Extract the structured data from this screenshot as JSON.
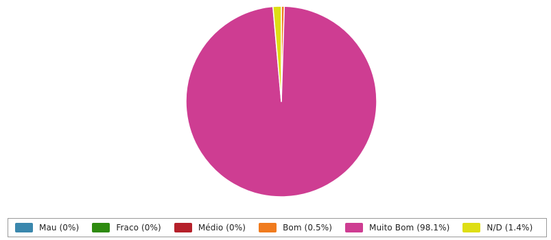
{
  "chart_data": {
    "type": "pie",
    "title": "",
    "slices": [
      {
        "label": "Mau",
        "value": 0,
        "legend": "Mau (0%)",
        "color": "#3a87ad"
      },
      {
        "label": "Fraco",
        "value": 0,
        "legend": "Fraco (0%)",
        "color": "#2e8b0f"
      },
      {
        "label": "Médio",
        "value": 0,
        "legend": "Médio (0%)",
        "color": "#b5202a"
      },
      {
        "label": "Bom",
        "value": 0.5,
        "legend": "Bom (0.5%)",
        "color": "#f07b1e"
      },
      {
        "label": "Muito Bom",
        "value": 98.1,
        "legend": "Muito Bom (98.1%)",
        "color": "#ce3d92"
      },
      {
        "label": "N/D",
        "value": 1.4,
        "legend": "N/D (1.4%)",
        "color": "#dede14"
      }
    ],
    "legend_position": "bottom"
  }
}
